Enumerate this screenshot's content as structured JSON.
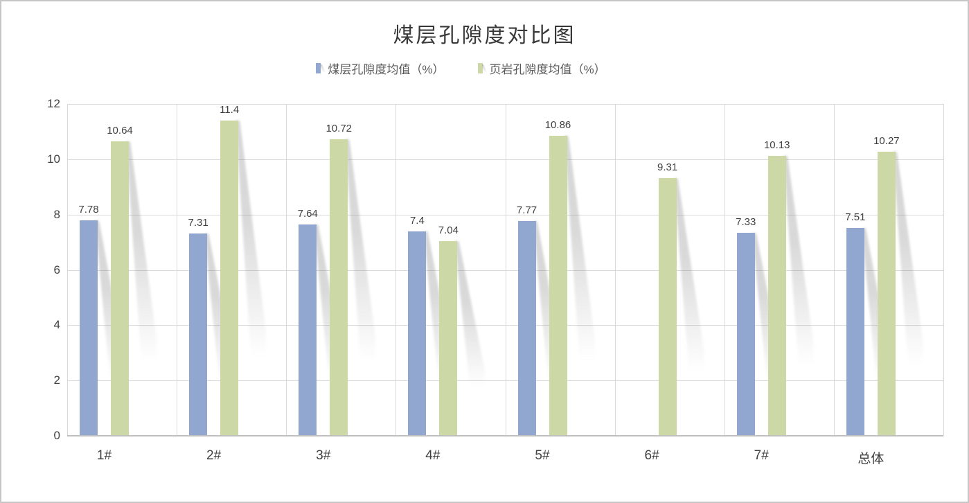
{
  "title": "煤层孔隙度对比图",
  "colors": {
    "series1": "#92A7D0",
    "series2": "#CCD9A6",
    "gridline": "#D9D9D9",
    "axis_line": "#BFBFBF",
    "title_text": "#383838",
    "label_text": "#404040",
    "legend_text": "#595959",
    "card_border": "#C6C6C6",
    "background": "#FFFFFF"
  },
  "chart_data": {
    "type": "bar",
    "title": "煤层孔隙度对比图",
    "categories": [
      "1#",
      "2#",
      "3#",
      "4#",
      "5#",
      "6#",
      "7#",
      "总体"
    ],
    "series": [
      {
        "name": "煤层孔隙度均值（%）",
        "color": "#92A7D0",
        "values": [
          7.78,
          7.31,
          7.64,
          7.4,
          7.77,
          null,
          7.33,
          7.51
        ]
      },
      {
        "name": "页岩孔隙度均值（%）",
        "color": "#CCD9A6",
        "values": [
          10.64,
          11.4,
          10.72,
          7.04,
          10.86,
          9.31,
          10.13,
          10.27
        ]
      }
    ],
    "ylim": [
      0,
      12
    ],
    "yticks": [
      0,
      2,
      4,
      6,
      8,
      10,
      12
    ],
    "grid": true,
    "legend_position": "top",
    "data_labels": true,
    "bar_shadow": "perspective-lower-right"
  }
}
